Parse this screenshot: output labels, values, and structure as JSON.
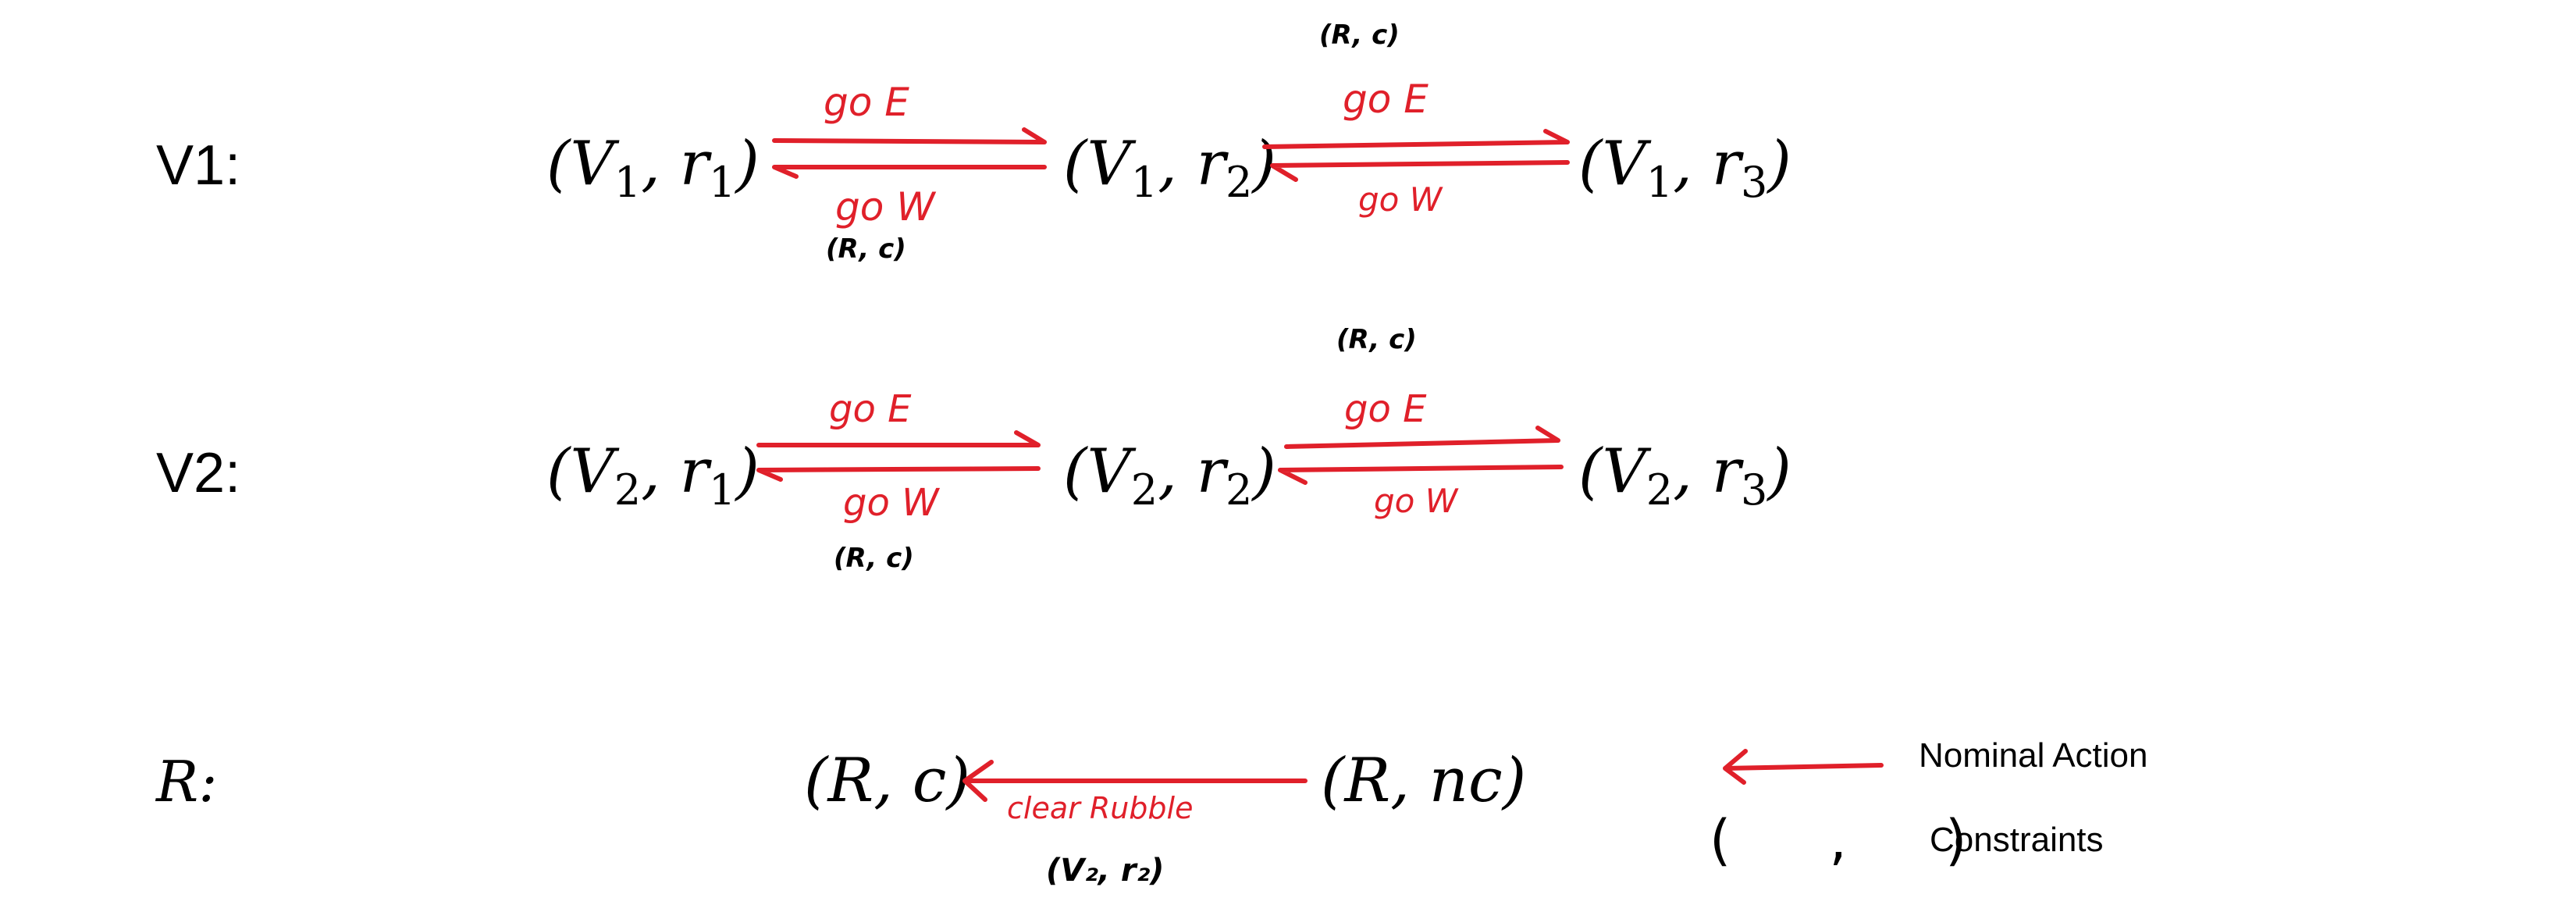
{
  "rows": [
    {
      "label": "V1:",
      "states": [
        {
          "base": "V",
          "base_sub": "1",
          "var": "r",
          "var_sub": "1"
        },
        {
          "base": "V",
          "base_sub": "1",
          "var": "r",
          "var_sub": "2"
        },
        {
          "base": "V",
          "base_sub": "1",
          "var": "r",
          "var_sub": "3"
        }
      ],
      "transitions": [
        {
          "forward": "go E",
          "backward": "go W",
          "constraint": "(R, c)",
          "constraint_pos": "below"
        },
        {
          "forward": "go E",
          "backward": "go W",
          "constraint": "(R, c)",
          "constraint_pos": "above"
        }
      ]
    },
    {
      "label": "V2:",
      "states": [
        {
          "base": "V",
          "base_sub": "2",
          "var": "r",
          "var_sub": "1"
        },
        {
          "base": "V",
          "base_sub": "2",
          "var": "r",
          "var_sub": "2"
        },
        {
          "base": "V",
          "base_sub": "2",
          "var": "r",
          "var_sub": "3"
        }
      ],
      "transitions": [
        {
          "forward": "go E",
          "backward": "go W",
          "constraint": "(R, c)",
          "constraint_pos": "below"
        },
        {
          "forward": "go E",
          "backward": "go W",
          "constraint": "(R, c)",
          "constraint_pos": "above"
        }
      ]
    },
    {
      "label": "R:",
      "states": [
        {
          "base": "R",
          "var": "c"
        },
        {
          "base": "R",
          "var": "nc"
        }
      ],
      "transitions": [
        {
          "action": "clear Rubble",
          "constraint": "(V₂, r₂)"
        }
      ]
    }
  ],
  "legend": [
    {
      "symbol": "red-arrow",
      "label": "Nominal Action"
    },
    {
      "symbol": "( , )",
      "label": "Constraints"
    }
  ],
  "colors": {
    "action": "#e0202a",
    "text": "#000000"
  }
}
